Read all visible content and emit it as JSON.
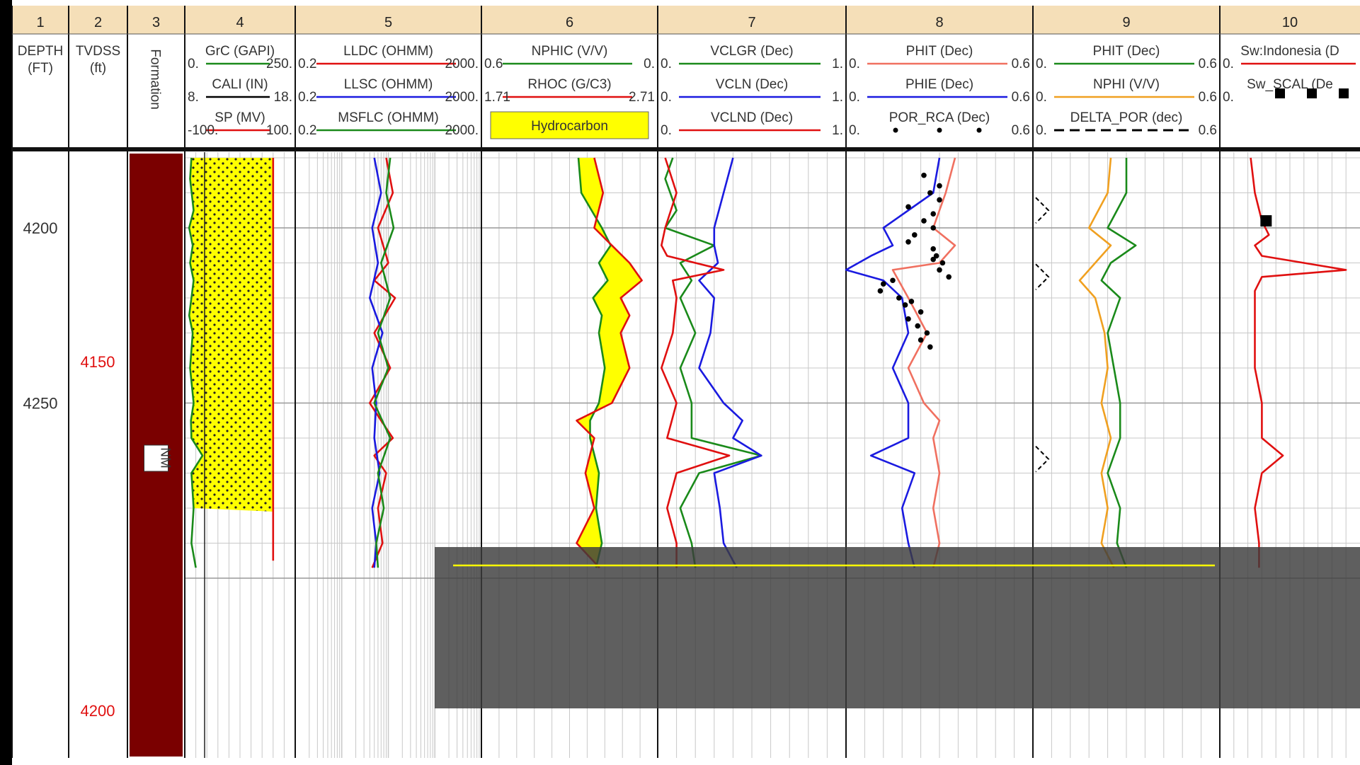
{
  "chart_data": {
    "type": "line",
    "title": "",
    "colors": {
      "background": "#ffffff",
      "header_band": "#f5dfb8",
      "formation_fill": "#7a0000",
      "hydrocarbon_fill": "#ffff00",
      "grid": "#c8c8c8",
      "red": "#e01010",
      "green": "#1a8a1a",
      "blue": "#1a1ae0",
      "orange": "#f0a020",
      "salmon": "#f07060",
      "black": "#000000",
      "overlay": "#3c3c3c",
      "cursor_line": "#ffff00"
    },
    "depth_axis": {
      "md_ticks": [
        4200,
        4250
      ],
      "tvdss_ticks": [
        4150,
        4200
      ],
      "md_color": "#333333",
      "tvdss_color": "#e01010"
    },
    "tracks": [
      {
        "number": "1",
        "headers": [
          "DEPTH",
          "(FT)"
        ]
      },
      {
        "number": "2",
        "headers": [
          "TVDSS",
          "(ft)"
        ]
      },
      {
        "number": "3",
        "headers": [
          "Formation"
        ],
        "formation_label": "NM"
      },
      {
        "number": "4",
        "curves": [
          {
            "name": "GrC (GAPI)",
            "min": "0.",
            "max": "250.",
            "color": "green"
          },
          {
            "name": "CALI (IN)",
            "min": "8.",
            "max": "18.",
            "color": "black"
          },
          {
            "name": "SP (MV)",
            "min": "-100.",
            "max": "100.",
            "color": "red"
          }
        ]
      },
      {
        "number": "5",
        "scale": "log",
        "curves": [
          {
            "name": "LLDC (OHMM)",
            "min": "0.2",
            "max": "2000.",
            "color": "red"
          },
          {
            "name": "LLSC (OHMM)",
            "min": "0.2",
            "max": "2000.",
            "color": "blue"
          },
          {
            "name": "MSFLC (OHMM)",
            "min": "0.2",
            "max": "2000.",
            "color": "green"
          }
        ]
      },
      {
        "number": "6",
        "curves": [
          {
            "name": "NPHIC (V/V)",
            "min": "0.6",
            "max": "0.",
            "color": "green"
          },
          {
            "name": "RHOC (G/C3)",
            "min": "1.71",
            "max": "2.71",
            "color": "red"
          }
        ],
        "fill_label": "Hydrocarbon"
      },
      {
        "number": "7",
        "curves": [
          {
            "name": "VCLGR (Dec)",
            "min": "0.",
            "max": "1.",
            "color": "green"
          },
          {
            "name": "VCLN (Dec)",
            "min": "0.",
            "max": "1.",
            "color": "blue"
          },
          {
            "name": "VCLND (Dec)",
            "min": "0.",
            "max": "1.",
            "color": "red"
          }
        ]
      },
      {
        "number": "8",
        "curves": [
          {
            "name": "PHIT (Dec)",
            "min": "0.",
            "max": "0.6",
            "color": "salmon"
          },
          {
            "name": "PHIE (Dec)",
            "min": "0.",
            "max": "0.6",
            "color": "blue"
          },
          {
            "name": "POR_RCA (Dec)",
            "min": "0.",
            "max": "0.6",
            "color": "black",
            "style": "dots"
          }
        ]
      },
      {
        "number": "9",
        "curves": [
          {
            "name": "PHIT (Dec)",
            "min": "0.",
            "max": "0.6",
            "color": "green"
          },
          {
            "name": "NPHI (V/V)",
            "min": "0.",
            "max": "0.6",
            "color": "orange"
          },
          {
            "name": "DELTA_POR (dec)",
            "min": "0.",
            "max": "0.6",
            "color": "black",
            "style": "dash"
          }
        ]
      },
      {
        "number": "10",
        "curves": [
          {
            "name": "Sw:Indonesia (D",
            "min": "0.",
            "max": "",
            "color": "red"
          },
          {
            "name": "Sw_SCAL (De",
            "min": "0.",
            "max": "",
            "color": "black",
            "style": "squares"
          }
        ]
      }
    ],
    "depth_range": [
      4167,
      4297
    ],
    "series": [
      {
        "track": "4",
        "curve": "GrC (GAPI)",
        "unit_min": 0,
        "unit_max": 250,
        "depth": [
          4180,
          4186,
          4195,
          4200,
          4205,
          4210,
          4215,
          4220,
          4225,
          4230,
          4240,
          4250,
          4255,
          4260,
          4265,
          4270,
          4280,
          4290,
          4297
        ],
        "values": [
          15,
          12,
          20,
          10,
          18,
          12,
          20,
          15,
          10,
          18,
          12,
          20,
          14,
          15,
          40,
          15,
          20,
          15,
          25
        ]
      },
      {
        "track": "4",
        "curve": "SP (MV)",
        "unit_min": -100,
        "unit_max": 100,
        "depth": [
          4180,
          4295
        ],
        "values": [
          60,
          60
        ]
      },
      {
        "track": "5",
        "curve": "LLDC (OHMM)",
        "scale": "log",
        "unit_min": 0.2,
        "unit_max": 2000,
        "depth": [
          4180,
          4190,
          4200,
          4210,
          4215,
          4220,
          4230,
          4240,
          4250,
          4255,
          4260,
          4265,
          4270,
          4280,
          4290,
          4297
        ],
        "values": [
          18,
          25,
          12,
          20,
          10,
          28,
          10,
          22,
          8,
          14,
          25,
          10,
          18,
          12,
          15,
          9
        ]
      },
      {
        "track": "5",
        "curve": "LLSC (OHMM)",
        "scale": "log",
        "unit_min": 0.2,
        "unit_max": 2000,
        "depth": [
          4180,
          4190,
          4200,
          4210,
          4220,
          4230,
          4240,
          4250,
          4260,
          4270,
          4280,
          4290,
          4297
        ],
        "values": [
          10,
          14,
          9,
          12,
          8,
          15,
          9,
          11,
          10,
          13,
          9,
          11,
          10
        ]
      },
      {
        "track": "5",
        "curve": "MSFLC (OHMM)",
        "scale": "log",
        "unit_min": 0.2,
        "unit_max": 2000,
        "depth": [
          4180,
          4190,
          4200,
          4210,
          4220,
          4230,
          4240,
          4250,
          4260,
          4270,
          4280,
          4290,
          4297
        ],
        "values": [
          22,
          18,
          26,
          14,
          22,
          12,
          20,
          10,
          22,
          12,
          16,
          11,
          12
        ]
      },
      {
        "track": "6",
        "curve": "NPHIC (V/V)",
        "unit_min": 0.6,
        "unit_max": 0,
        "depth": [
          4180,
          4190,
          4200,
          4205,
          4210,
          4215,
          4220,
          4225,
          4230,
          4240,
          4250,
          4255,
          4260,
          4270,
          4280,
          4290,
          4297
        ],
        "values": [
          0.27,
          0.26,
          0.19,
          0.16,
          0.2,
          0.17,
          0.22,
          0.19,
          0.2,
          0.18,
          0.2,
          0.23,
          0.23,
          0.2,
          0.21,
          0.19,
          0.21
        ]
      },
      {
        "track": "6",
        "curve": "RHOC (G/C3)",
        "unit_min": 1.71,
        "unit_max": 2.71,
        "depth": [
          4180,
          4190,
          4200,
          4205,
          4210,
          4215,
          4220,
          4225,
          4230,
          4240,
          4250,
          4255,
          4260,
          4270,
          4280,
          4290,
          4297
        ],
        "values": [
          2.35,
          2.4,
          2.35,
          2.45,
          2.55,
          2.62,
          2.5,
          2.55,
          2.5,
          2.55,
          2.45,
          2.25,
          2.35,
          2.3,
          2.35,
          2.25,
          2.38
        ]
      },
      {
        "track": "7",
        "curve": "VCLGR (Dec)",
        "unit_min": 0,
        "unit_max": 1,
        "depth": [
          4180,
          4186,
          4195,
          4200,
          4205,
          4210,
          4215,
          4220,
          4230,
          4240,
          4250,
          4260,
          4265,
          4270,
          4280,
          4290,
          4297
        ],
        "values": [
          0.08,
          0.04,
          0.1,
          0.04,
          0.3,
          0.12,
          0.18,
          0.12,
          0.2,
          0.12,
          0.18,
          0.18,
          0.55,
          0.22,
          0.12,
          0.18,
          0.2
        ]
      },
      {
        "track": "7",
        "curve": "VCLN (Dec)",
        "unit_min": 0,
        "unit_max": 1,
        "depth": [
          4180,
          4190,
          4200,
          4205,
          4210,
          4215,
          4220,
          4230,
          4240,
          4250,
          4255,
          4260,
          4265,
          4270,
          4280,
          4290,
          4297
        ],
        "values": [
          0.4,
          0.35,
          0.3,
          0.3,
          0.32,
          0.22,
          0.3,
          0.28,
          0.22,
          0.35,
          0.45,
          0.4,
          0.55,
          0.3,
          0.33,
          0.35,
          0.42
        ]
      },
      {
        "track": "7",
        "curve": "VCLND (Dec)",
        "unit_min": 0,
        "unit_max": 1,
        "depth": [
          4180,
          4190,
          4200,
          4205,
          4208,
          4212,
          4215,
          4220,
          4230,
          4240,
          4250,
          4260,
          4265,
          4270,
          4280,
          4290,
          4297
        ],
        "values": [
          0.04,
          0.1,
          0.04,
          0.02,
          0.05,
          0.35,
          0.08,
          0.1,
          0.08,
          0.02,
          0.1,
          0.05,
          0.38,
          0.1,
          0.05,
          0.1,
          0.1
        ]
      },
      {
        "track": "8",
        "curve": "PHIT (Dec)",
        "unit_min": 0,
        "unit_max": 0.6,
        "depth": [
          4180,
          4190,
          4200,
          4205,
          4210,
          4212,
          4220,
          4230,
          4240,
          4250,
          4255,
          4260,
          4270,
          4280,
          4290,
          4297
        ],
        "values": [
          0.35,
          0.32,
          0.28,
          0.35,
          0.3,
          0.15,
          0.2,
          0.26,
          0.2,
          0.25,
          0.3,
          0.28,
          0.3,
          0.28,
          0.3,
          0.28
        ]
      },
      {
        "track": "8",
        "curve": "PHIE (Dec)",
        "unit_min": 0,
        "unit_max": 0.6,
        "depth": [
          4180,
          4190,
          4200,
          4205,
          4208,
          4212,
          4215,
          4220,
          4230,
          4240,
          4250,
          4260,
          4265,
          4270,
          4280,
          4290,
          4297
        ],
        "values": [
          0.3,
          0.28,
          0.12,
          0.15,
          0.08,
          0.0,
          0.12,
          0.18,
          0.2,
          0.15,
          0.2,
          0.2,
          0.08,
          0.22,
          0.18,
          0.2,
          0.22
        ]
      },
      {
        "track": "8",
        "curve": "POR_RCA (Dec)",
        "style": "dots",
        "unit_min": 0,
        "unit_max": 0.6,
        "depth": [
          4185,
          4188,
          4190,
          4192,
          4194,
          4196,
          4198,
          4200,
          4202,
          4204,
          4206,
          4208,
          4209,
          4210,
          4212,
          4214,
          4215,
          4216,
          4218,
          4220,
          4221,
          4222,
          4224,
          4226,
          4228,
          4230,
          4232,
          4234
        ],
        "values": [
          0.25,
          0.3,
          0.27,
          0.3,
          0.2,
          0.28,
          0.25,
          0.28,
          0.22,
          0.2,
          0.28,
          0.29,
          0.28,
          0.31,
          0.3,
          0.33,
          0.15,
          0.12,
          0.11,
          0.17,
          0.21,
          0.19,
          0.24,
          0.2,
          0.23,
          0.26,
          0.24,
          0.27
        ]
      },
      {
        "track": "9",
        "curve": "PHIT (Dec)",
        "unit_min": 0,
        "unit_max": 0.6,
        "depth": [
          4180,
          4190,
          4200,
          4205,
          4210,
          4215,
          4220,
          4230,
          4240,
          4250,
          4260,
          4270,
          4280,
          4290,
          4297
        ],
        "values": [
          0.3,
          0.3,
          0.24,
          0.33,
          0.25,
          0.22,
          0.28,
          0.24,
          0.26,
          0.28,
          0.28,
          0.24,
          0.28,
          0.27,
          0.3
        ]
      },
      {
        "track": "9",
        "curve": "NPHI (V/V)",
        "unit_min": 0,
        "unit_max": 0.6,
        "depth": [
          4180,
          4190,
          4200,
          4205,
          4210,
          4215,
          4220,
          4230,
          4240,
          4250,
          4260,
          4270,
          4280,
          4290,
          4297
        ],
        "values": [
          0.25,
          0.24,
          0.18,
          0.25,
          0.2,
          0.15,
          0.2,
          0.23,
          0.24,
          0.22,
          0.25,
          0.22,
          0.24,
          0.22,
          0.26
        ]
      },
      {
        "track": "10",
        "curve": "Sw:Indonesia (D",
        "unit_min": 0,
        "unit_max": 1,
        "depth": [
          4180,
          4190,
          4198,
          4202,
          4205,
          4208,
          4212,
          4214,
          4218,
          4230,
          4240,
          4250,
          4260,
          4265,
          4270,
          4280,
          4290,
          4297
        ],
        "values": [
          0.22,
          0.25,
          0.3,
          0.35,
          0.25,
          0.3,
          0.9,
          0.3,
          0.25,
          0.25,
          0.25,
          0.3,
          0.3,
          0.45,
          0.3,
          0.25,
          0.28,
          0.28
        ]
      },
      {
        "track": "10",
        "curve": "Sw_SCAL (De",
        "style": "squares",
        "unit_min": 0,
        "unit_max": 1,
        "depth": [
          4198
        ],
        "values": [
          0.33
        ]
      }
    ]
  }
}
